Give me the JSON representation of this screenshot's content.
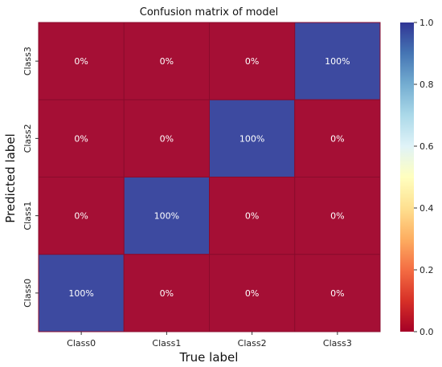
{
  "chart_data": {
    "type": "heatmap",
    "title": "Confusion matrix of model",
    "xlabel": "True label",
    "ylabel": "Predicted label",
    "x_categories": [
      "Class0",
      "Class1",
      "Class2",
      "Class3"
    ],
    "y_categories_top_to_bottom": [
      "Class3",
      "Class2",
      "Class1",
      "Class0"
    ],
    "values": [
      [
        0,
        0,
        0,
        1
      ],
      [
        0,
        0,
        1,
        0
      ],
      [
        0,
        1,
        0,
        0
      ],
      [
        1,
        0,
        0,
        0
      ]
    ],
    "cell_labels": [
      [
        "0%",
        "0%",
        "0%",
        "100%"
      ],
      [
        "0%",
        "0%",
        "100%",
        "0%"
      ],
      [
        "0%",
        "100%",
        "0%",
        "0%"
      ],
      [
        "100%",
        "0%",
        "0%",
        "0%"
      ]
    ],
    "colorbar": {
      "range": [
        0.0,
        1.0
      ],
      "ticks": [
        "0.0",
        "0.2",
        "0.4",
        "0.6",
        "0.8",
        "1.0"
      ],
      "colormap": "RdYlBu",
      "low_color": "#a50f35",
      "high_color": "#3d4aa0"
    },
    "grid": false,
    "legend": "colorbar-right"
  }
}
